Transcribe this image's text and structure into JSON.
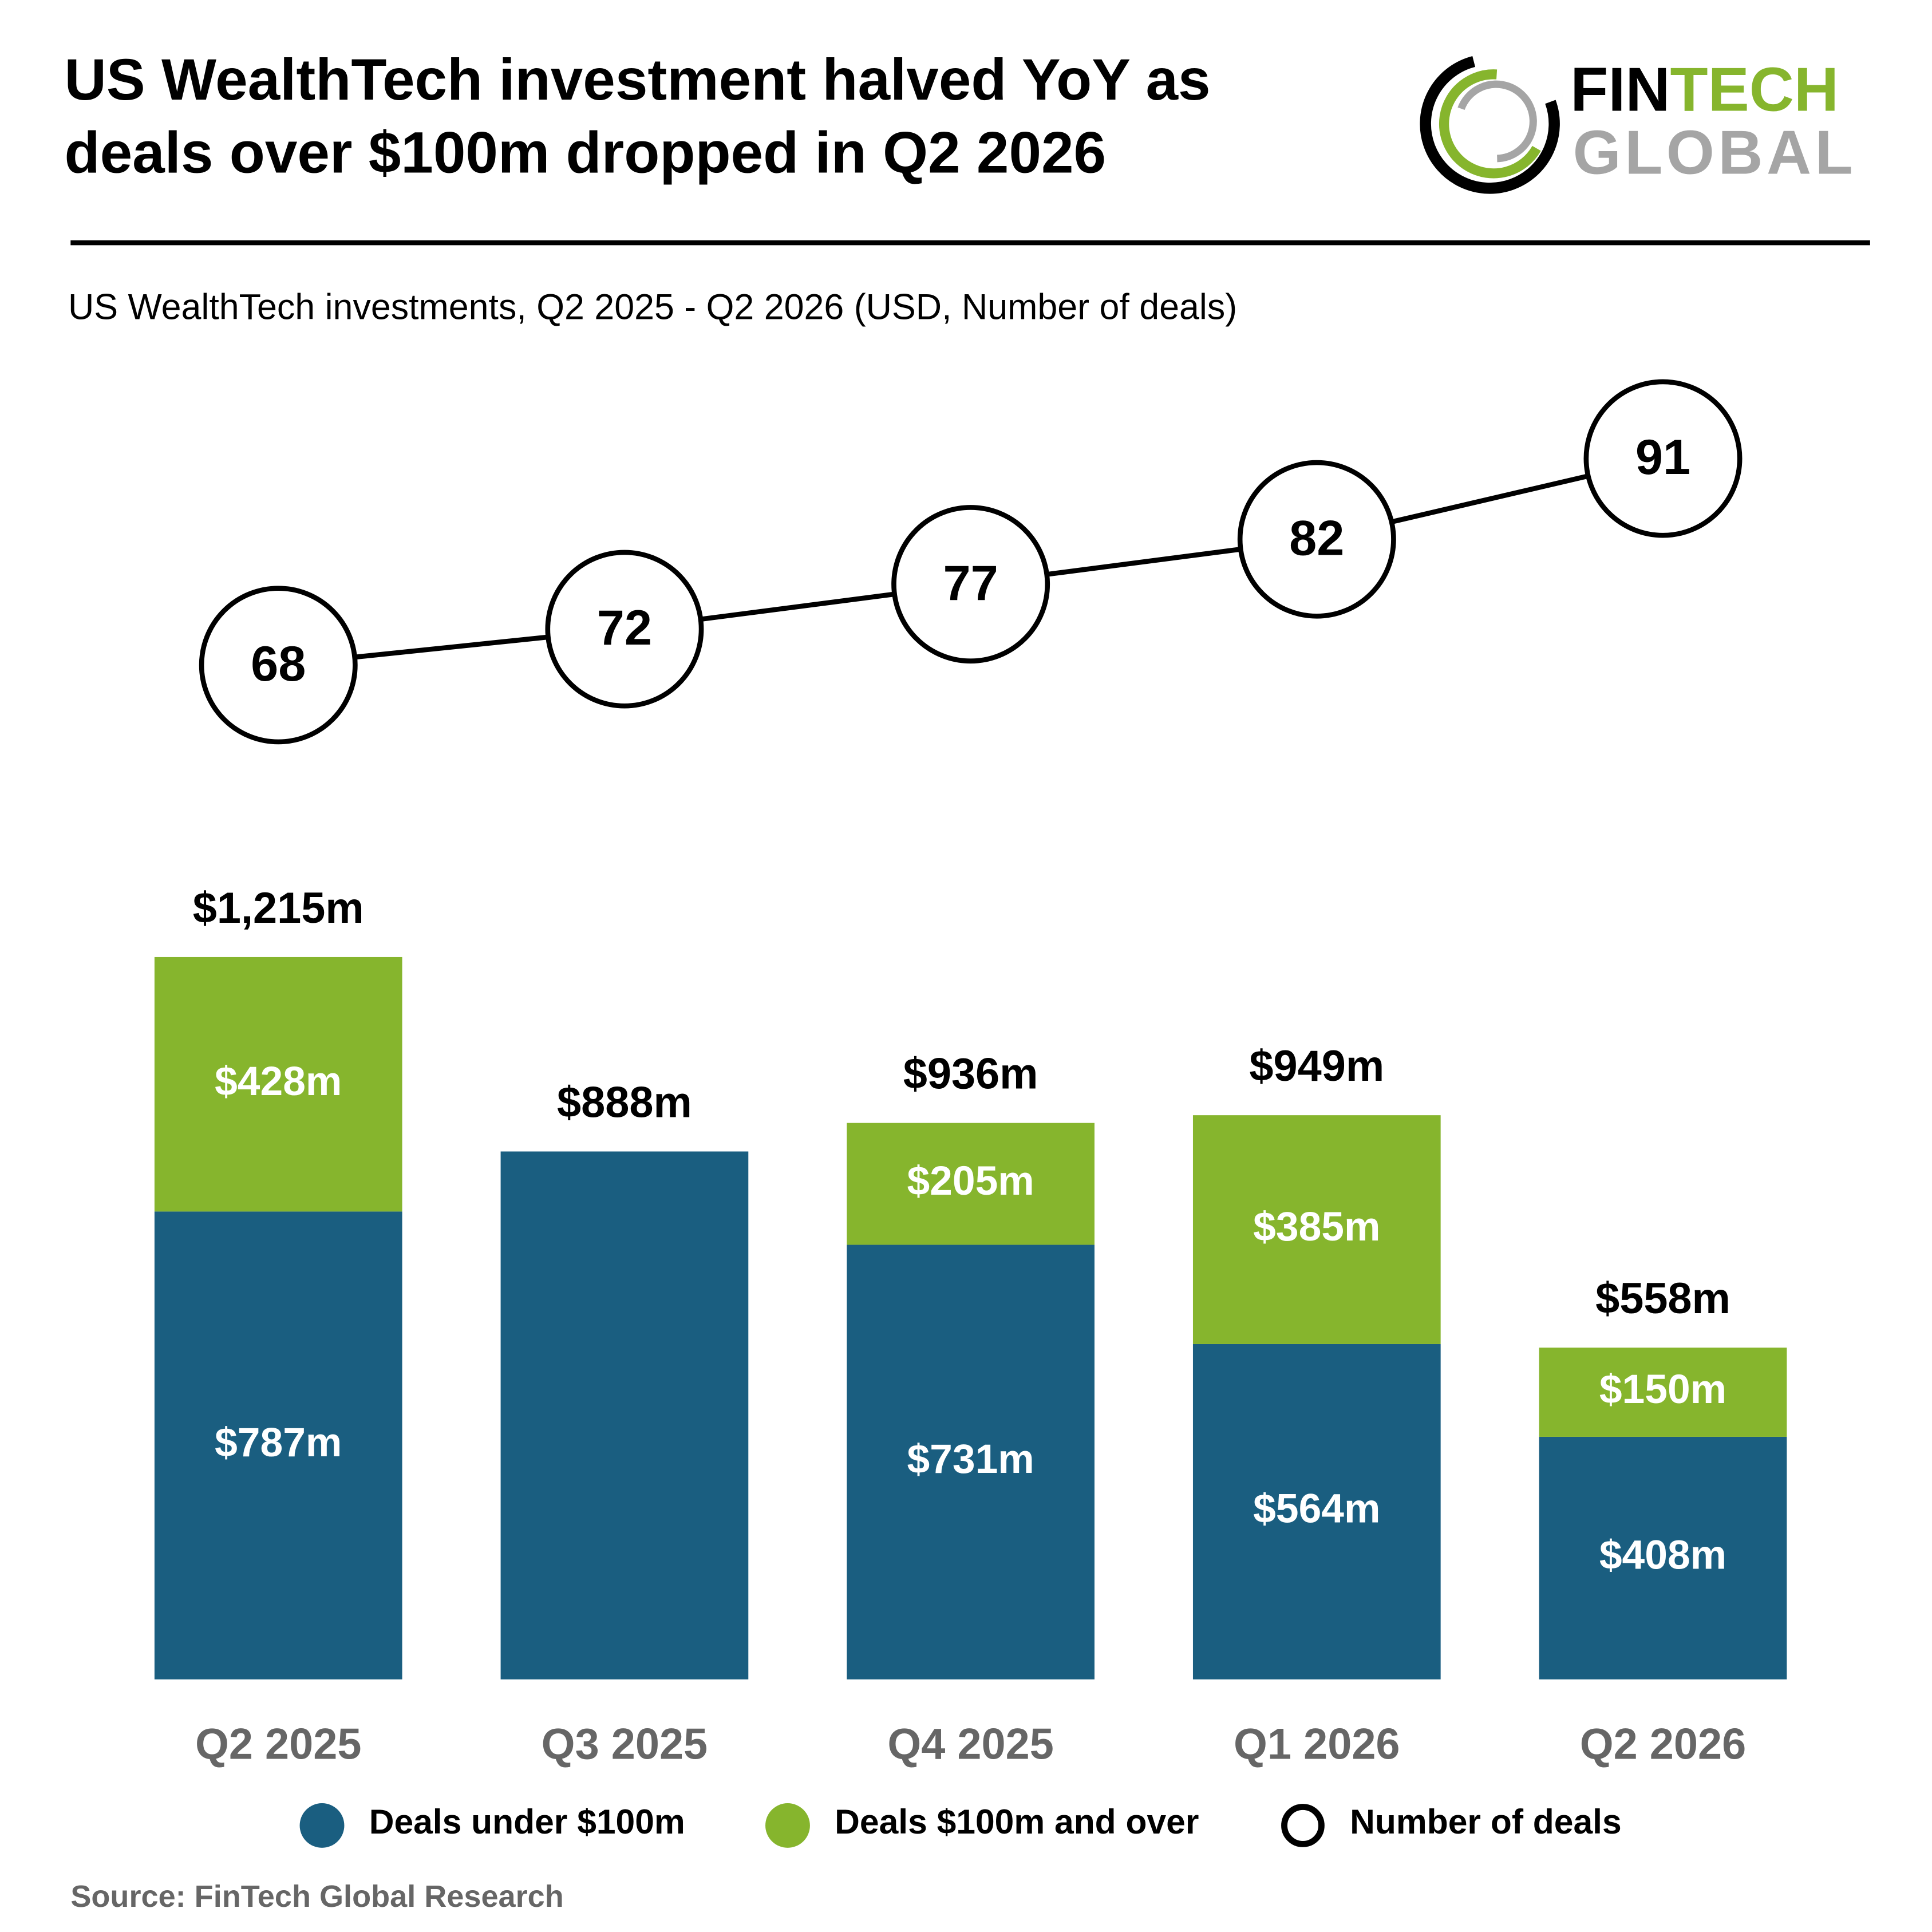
{
  "header": {
    "title_line1": "US WealthTech investment halved YoY as",
    "title_line2": "deals over $100m dropped in Q2 2026",
    "logo": {
      "part1": "FIN",
      "part2": "TECH",
      "part3": "GLOBAL"
    }
  },
  "chart_data": {
    "type": "bar",
    "subtitle": "US WealthTech investments, Q2 2025 - Q2 2026 (USD, Number of deals)",
    "categories": [
      "Q2 2025",
      "Q3 2025",
      "Q4 2025",
      "Q1 2026",
      "Q2 2026"
    ],
    "series": [
      {
        "name": "Deals under $100m",
        "type": "bar",
        "color": "#1a5e80",
        "values": [
          787,
          888,
          731,
          564,
          408
        ],
        "value_labels": [
          "$787m",
          null,
          "$731m",
          "$564m",
          "$408m"
        ]
      },
      {
        "name": "Deals $100m and over",
        "type": "bar",
        "color": "#86b52d",
        "values": [
          428,
          null,
          205,
          385,
          150
        ],
        "value_labels": [
          "$428m",
          null,
          "$205m",
          "$385m",
          "$150m"
        ]
      },
      {
        "name": "Number of deals",
        "type": "line",
        "axis": "y2",
        "color": "#000000",
        "values": [
          68,
          72,
          77,
          82,
          91
        ]
      }
    ],
    "totals": {
      "values": [
        1215,
        888,
        936,
        949,
        558
      ],
      "value_labels": [
        "$1,215m",
        "$888m",
        "$936m",
        "$949m",
        "$558m"
      ]
    },
    "ylim": [
      0,
      1300
    ],
    "y2lim": [
      40,
      100
    ],
    "source": "Source: FinTech Global Research"
  }
}
